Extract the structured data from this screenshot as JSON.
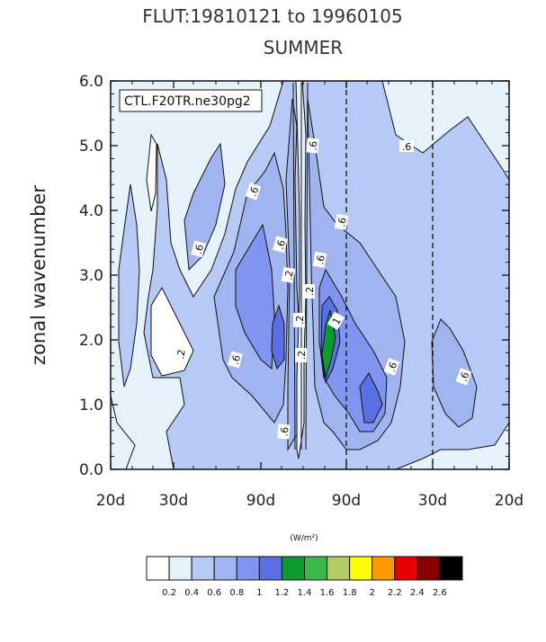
{
  "chart_data": {
    "type": "contour",
    "title": "FLUT:19810121 to 19960105",
    "subtitle": "SUMMER",
    "case_label": "CTL.F20TR.ne30pg2",
    "ylabel": "zonal wavenumber",
    "xlabel": "",
    "ylim": [
      0,
      6
    ],
    "yticks": [
      "0.0",
      "1.0",
      "2.0",
      "3.0",
      "4.0",
      "5.0",
      "6.0"
    ],
    "xticks": [
      "20d",
      "30d",
      "90d",
      "90d",
      "30d",
      "20d"
    ],
    "units": "(W/m²)",
    "colorbar": {
      "colors": [
        "#ffffff",
        "#e6f2fa",
        "#b7c9f5",
        "#a0b4f0",
        "#7f95ef",
        "#5b6fe6",
        "#0e9a31",
        "#3cb84a",
        "#b2cc66",
        "#ffff00",
        "#ff9a00",
        "#e80000",
        "#8a0000",
        "#000000"
      ],
      "labels": [
        "0.2",
        "0.4",
        "0.6",
        "0.8",
        "1",
        "1.2",
        "1.4",
        "1.6",
        "1.8",
        "2",
        "2.2",
        "2.4",
        "2.6"
      ]
    },
    "contour_labels": [
      ".6",
      ".6",
      ".6",
      ".2",
      ".6",
      ".6",
      ".2",
      ".2",
      ".2",
      ".6",
      ".6",
      "1",
      ".6",
      ".6",
      ".6",
      ".2",
      ".6"
    ]
  }
}
